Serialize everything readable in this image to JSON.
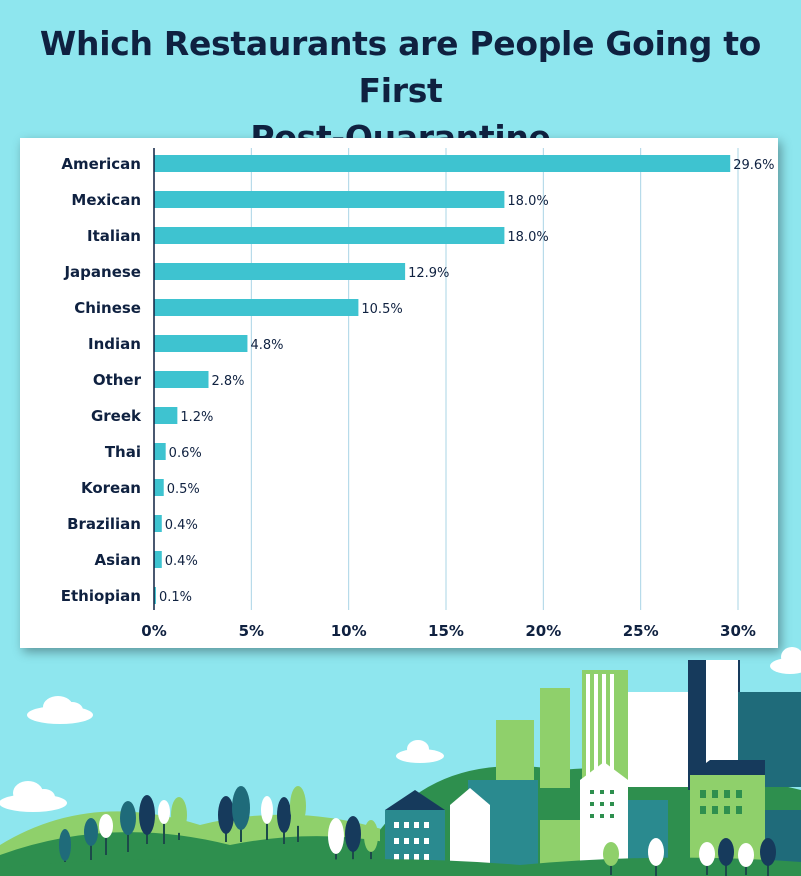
{
  "title_lines": [
    "Which Restaurants are People Going to First",
    "Post-Quarantine"
  ],
  "colors": {
    "background": "#8ee6ee",
    "bar": "#3ec3d0",
    "grid": "#a9d4e6",
    "text": "#0f2140",
    "hill_dark": "#2e8f4e",
    "hill_light": "#8fd06b",
    "building_teal": "#2a8a8f",
    "building_navy": "#163a5c"
  },
  "chart_data": {
    "type": "bar",
    "orientation": "horizontal",
    "title": "Which Restaurants are People Going to First Post-Quarantine",
    "categories": [
      "American",
      "Mexican",
      "Italian",
      "Japanese",
      "Chinese",
      "Indian",
      "Other",
      "Greek",
      "Thai",
      "Korean",
      "Brazilian",
      "Asian",
      "Ethiopian"
    ],
    "values": [
      29.6,
      18.0,
      18.0,
      12.9,
      10.5,
      4.8,
      2.8,
      1.2,
      0.6,
      0.5,
      0.4,
      0.4,
      0.1
    ],
    "value_labels": [
      "29.6%",
      "18.0%",
      "18.0%",
      "12.9%",
      "10.5%",
      "4.8%",
      "2.8%",
      "1.2%",
      "0.6%",
      "0.5%",
      "0.4%",
      "0.4%",
      "0.1%"
    ],
    "xticks": [
      0,
      5,
      10,
      15,
      20,
      25,
      30
    ],
    "xtick_labels": [
      "0%",
      "5%",
      "10%",
      "15%",
      "20%",
      "25%",
      "30%"
    ],
    "xlim": [
      0,
      30
    ],
    "xlabel": "",
    "ylabel": "",
    "grid": "vertical",
    "legend": "none"
  }
}
